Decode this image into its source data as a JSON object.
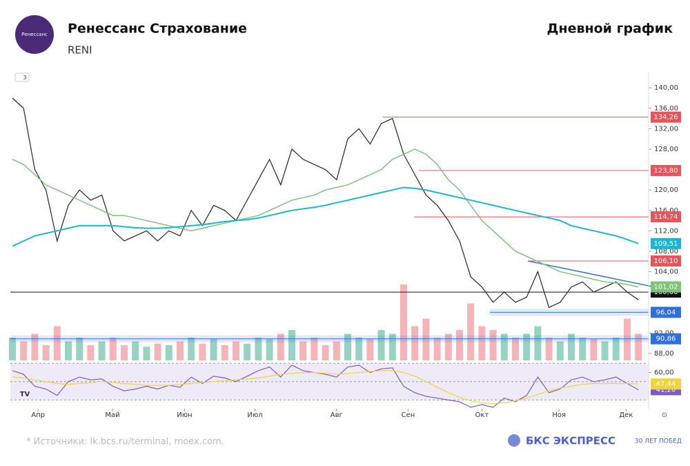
{
  "header": {
    "logo_text": "Ренессанс",
    "title": "Ренессанс Страхование",
    "ticker": "RENI",
    "period": "Дневной график"
  },
  "footer": {
    "source": "* Источники: lk.bcs.ru/terminal, moex.com.",
    "brand": "БКС ЭКСПРЕСС",
    "brand_tag": "30 ЛЕТ ПОБЕД"
  },
  "chart_data": [
    {
      "type": "line",
      "badge": "3",
      "xticks": [
        {
          "value": 2.3,
          "label": "Апр"
        },
        {
          "value": 8.95,
          "label": "Май"
        },
        {
          "value": 15.4,
          "label": "Июн"
        },
        {
          "value": 21.7,
          "label": "Июл"
        },
        {
          "value": 29,
          "label": "Авг"
        },
        {
          "value": 35.4,
          "label": "Сен"
        },
        {
          "value": 42,
          "label": "Окт"
        },
        {
          "value": 48.9,
          "label": "Ноя"
        },
        {
          "value": 54.9,
          "label": "Дек"
        }
      ],
      "ylim": [
        86.5,
        143
      ],
      "yticks": [
        {
          "value": 140,
          "label": "140,00"
        },
        {
          "value": 136,
          "label": "136,00"
        },
        {
          "value": 132,
          "label": "132,00"
        },
        {
          "value": 128,
          "label": "128,00"
        },
        {
          "value": 120,
          "label": "120,00"
        },
        {
          "value": 116,
          "label": "116,00"
        },
        {
          "value": 112,
          "label": "112,00"
        },
        {
          "value": 108,
          "label": "108,00"
        },
        {
          "value": 104,
          "label": "104,00"
        },
        {
          "value": 92,
          "label": "92,00"
        },
        {
          "value": 88,
          "label": "88,00"
        }
      ],
      "series": [
        {
          "name": "Close",
          "color": "#222222",
          "values": [
            138,
            136,
            124,
            120,
            110,
            117,
            120,
            118,
            119,
            112,
            110,
            111,
            112,
            110,
            112,
            111,
            116,
            113,
            117,
            116,
            114,
            118,
            122,
            126,
            121,
            128,
            126,
            125,
            124,
            122,
            130,
            132,
            129,
            133,
            134,
            127,
            123,
            119,
            117,
            114,
            110,
            103,
            101,
            98,
            100,
            98,
            99,
            104,
            97,
            98,
            101,
            102,
            100,
            101,
            102,
            100,
            98.5
          ]
        },
        {
          "name": "MA50",
          "color": "#7cc47a",
          "values": [
            126,
            125,
            123,
            121,
            120,
            119,
            118,
            117,
            116,
            115,
            115,
            114.5,
            114,
            113.5,
            113,
            112.5,
            112,
            112.5,
            113,
            113.5,
            114,
            114.5,
            115,
            116,
            117,
            118,
            118.5,
            119,
            120,
            120.5,
            121,
            122,
            123,
            124,
            126,
            127,
            128,
            127,
            125,
            122,
            120,
            117,
            114,
            112,
            110,
            108,
            107,
            106,
            105,
            104,
            103.5,
            103,
            102.5,
            102,
            101.8,
            101.5,
            101.02
          ],
          "end_label": {
            "value": 101.02,
            "label": "101,02"
          }
        },
        {
          "name": "MA200",
          "color": "#1bb6d4",
          "values": [
            109,
            110,
            111,
            111.5,
            112,
            112.5,
            113,
            113,
            113,
            113,
            112.8,
            112.6,
            112.5,
            112.5,
            112.6,
            112.8,
            113,
            113.2,
            113.5,
            113.8,
            114,
            114.2,
            114.5,
            115,
            115.5,
            116,
            116.3,
            116.6,
            117,
            117.5,
            118,
            118.5,
            119,
            119.5,
            120,
            120.5,
            120.3,
            120,
            119.5,
            119,
            118.5,
            118,
            117.5,
            117,
            116.5,
            116,
            115.5,
            115,
            114.5,
            114,
            113,
            112.5,
            112,
            111.5,
            111,
            110.3,
            109.51
          ],
          "end_label": {
            "value": 109.51,
            "label": "109,51"
          }
        }
      ],
      "levels": [
        {
          "value": 134.26,
          "label": "134,26",
          "color": "#e8545a"
        },
        {
          "value": 123.8,
          "label": "123,80",
          "color": "#e8545a"
        },
        {
          "value": 114.74,
          "label": "114,74",
          "color": "#e8545a"
        },
        {
          "value": 106.1,
          "label": "106,10",
          "color": "#e8545a"
        },
        {
          "value": 100,
          "label": "100,00",
          "color": "#111111"
        },
        {
          "value": 96.04,
          "label": "96,04",
          "color": "#2f6fe0"
        },
        {
          "value": 90.86,
          "label": "90,86",
          "color": "#2f6fe0"
        }
      ]
    },
    {
      "type": "bar",
      "up_color": "#7cc9b2",
      "down_color": "#f2a3a6",
      "ylim": [
        0,
        100
      ],
      "values": [
        30,
        25,
        35,
        20,
        45,
        25,
        30,
        20,
        25,
        30,
        20,
        25,
        18,
        22,
        20,
        25,
        30,
        22,
        28,
        20,
        25,
        22,
        30,
        28,
        35,
        40,
        25,
        30,
        20,
        25,
        35,
        30,
        28,
        40,
        35,
        100,
        45,
        55,
        30,
        35,
        40,
        75,
        45,
        40,
        35,
        30,
        35,
        45,
        30,
        25,
        35,
        30,
        28,
        25,
        30,
        55,
        35
      ]
    },
    {
      "type": "line",
      "badge": "TV",
      "ylim": [
        22,
        74
      ],
      "yticks": [
        {
          "value": 60,
          "label": "60,00"
        }
      ],
      "hlines": [
        70,
        50,
        30
      ],
      "series": [
        {
          "name": "RSI",
          "color": "#7b5cc4",
          "values": [
            62,
            58,
            45,
            42,
            35,
            50,
            55,
            52,
            53,
            45,
            40,
            42,
            45,
            42,
            46,
            44,
            55,
            48,
            56,
            54,
            50,
            56,
            62,
            66,
            55,
            68,
            62,
            60,
            58,
            55,
            66,
            68,
            60,
            64,
            65,
            45,
            38,
            34,
            32,
            30,
            28,
            22,
            25,
            22,
            32,
            28,
            35,
            55,
            38,
            42,
            52,
            55,
            50,
            52,
            55,
            48,
            41.2
          ],
          "end_label": {
            "value": 41.2,
            "label": "41,20"
          }
        },
        {
          "name": "Signal",
          "color": "#f2d43a",
          "values": [
            55,
            54,
            52,
            50,
            48,
            47,
            48,
            49,
            50,
            49,
            48,
            47,
            46,
            46,
            46,
            47,
            48,
            49,
            50,
            51,
            52,
            53,
            54,
            56,
            58,
            59,
            60,
            60,
            59,
            58,
            59,
            60,
            61,
            62,
            62,
            60,
            56,
            50,
            44,
            38,
            33,
            29,
            27,
            26,
            27,
            29,
            32,
            36,
            40,
            43,
            45,
            47,
            48,
            48,
            48,
            48,
            47.44
          ],
          "end_label": {
            "value": 47.44,
            "label": "47,44"
          }
        }
      ]
    }
  ]
}
